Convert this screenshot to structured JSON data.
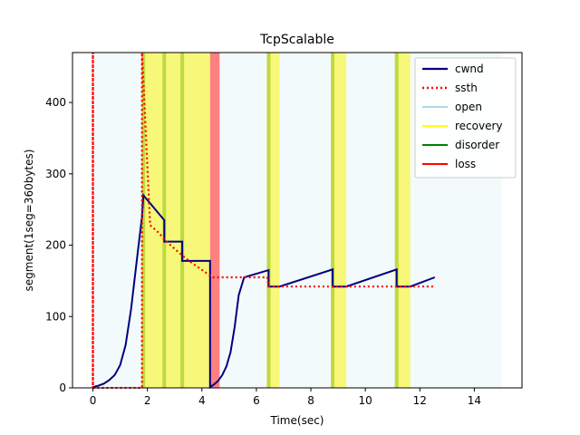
{
  "chart_data": {
    "type": "line",
    "title": "TcpScalable",
    "xlabel": "Time(sec)",
    "ylabel": "segment(1seg=360bytes)",
    "xlim": [
      -0.75,
      15.75
    ],
    "ylim": [
      0,
      470
    ],
    "xticks": [
      0,
      2,
      4,
      6,
      8,
      10,
      12,
      14
    ],
    "yticks": [
      0,
      100,
      200,
      300,
      400
    ],
    "grid": false,
    "legend_position": "top-right",
    "colors": {
      "cwnd": "#00007f",
      "ssth": "#ff0000",
      "open": "#add8e6",
      "recovery": "#ffff00",
      "disorder": "#008000",
      "loss": "#ff0000",
      "open_region": "#f3fafb",
      "recovery_region": "#f7f77a",
      "disorder_region": "#bfd940",
      "loss_region": "#ff8080"
    },
    "state_regions": [
      {
        "state": "open",
        "x0": 0,
        "x1": 15
      },
      {
        "state": "recovery",
        "x0": 1.8,
        "x1": 4.3
      },
      {
        "state": "loss",
        "x0": 4.3,
        "x1": 4.65
      },
      {
        "state": "recovery",
        "x0": 6.4,
        "x1": 6.85
      },
      {
        "state": "recovery",
        "x0": 8.75,
        "x1": 9.3
      },
      {
        "state": "recovery",
        "x0": 11.1,
        "x1": 11.65
      }
    ],
    "disorder_marks": [
      1.85,
      2.62,
      3.28,
      6.45,
      8.8,
      11.15
    ],
    "series": [
      {
        "name": "cwnd",
        "style": "solid",
        "x": [
          0.0,
          0.2,
          0.4,
          0.6,
          0.8,
          1.0,
          1.2,
          1.4,
          1.6,
          1.8,
          1.85,
          2.62,
          2.62,
          3.28,
          3.28,
          4.3,
          4.3,
          4.45,
          4.6,
          4.75,
          4.9,
          5.05,
          5.2,
          5.35,
          5.55,
          6.45,
          6.45,
          6.85,
          8.8,
          8.8,
          9.3,
          11.15,
          11.15,
          11.65,
          12.55
        ],
        "y": [
          1,
          3,
          6,
          11,
          18,
          32,
          60,
          110,
          175,
          240,
          270,
          235,
          205,
          205,
          178,
          178,
          1,
          5,
          10,
          18,
          30,
          50,
          85,
          130,
          155,
          165,
          142,
          142,
          166,
          142,
          142,
          166,
          142,
          142,
          155
        ]
      },
      {
        "name": "ssth",
        "style": "dotted",
        "x": [
          0.0,
          0.0,
          0.0,
          1.8,
          1.8,
          2.1,
          2.4,
          2.7,
          3.0,
          3.3,
          3.6,
          3.9,
          4.2,
          4.4,
          5.0,
          5.6,
          6.0,
          6.4,
          6.45,
          12.55
        ],
        "y": [
          0,
          470,
          0,
          0,
          470,
          228,
          218,
          205,
          195,
          185,
          176,
          168,
          160,
          155,
          155,
          155,
          155,
          155,
          142,
          142
        ]
      }
    ],
    "legend": [
      "cwnd",
      "ssth",
      "open",
      "recovery",
      "disorder",
      "loss"
    ]
  }
}
